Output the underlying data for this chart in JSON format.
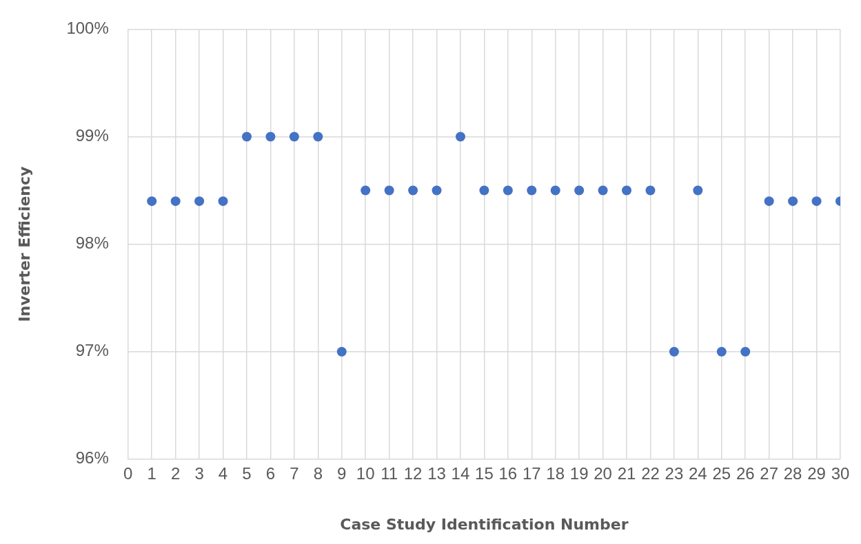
{
  "chart_data": {
    "type": "scatter",
    "xlabel": "Case Study Identification Number",
    "ylabel": "Inverter Efficiency",
    "x": [
      1,
      2,
      3,
      4,
      5,
      6,
      7,
      8,
      9,
      10,
      11,
      12,
      13,
      14,
      15,
      16,
      17,
      18,
      19,
      20,
      21,
      22,
      23,
      24,
      25,
      26,
      27,
      28,
      29,
      30
    ],
    "series": [
      {
        "color": "#4472c4",
        "values": [
          98.4,
          98.4,
          98.4,
          98.4,
          99,
          99,
          99,
          99,
          97,
          98.5,
          98.5,
          98.5,
          98.5,
          99,
          98.5,
          98.5,
          98.5,
          98.5,
          98.5,
          98.5,
          98.5,
          98.5,
          97,
          98.5,
          97,
          97,
          98.4,
          98.4,
          98.4,
          98.4
        ]
      }
    ],
    "xlim": [
      0,
      30
    ],
    "xticks": [
      0,
      1,
      2,
      3,
      4,
      5,
      6,
      7,
      8,
      9,
      10,
      11,
      12,
      13,
      14,
      15,
      16,
      17,
      18,
      19,
      20,
      21,
      22,
      23,
      24,
      25,
      26,
      27,
      28,
      29,
      30
    ],
    "ylim": [
      96,
      100
    ],
    "yticks": [
      {
        "value": 96,
        "label": "96%"
      },
      {
        "value": 97,
        "label": "97%"
      },
      {
        "value": 98,
        "label": "98%"
      },
      {
        "value": 99,
        "label": "99%"
      },
      {
        "value": 100,
        "label": "100%"
      }
    ],
    "grid": true,
    "legend": false,
    "marker": "circle"
  }
}
